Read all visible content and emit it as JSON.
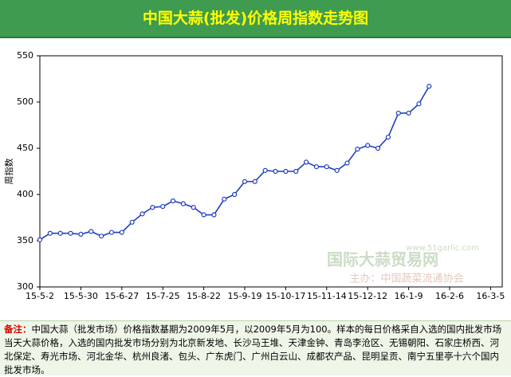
{
  "chart_data": {
    "type": "line",
    "title": "中国大蒜(批发)价格周指数走势图",
    "y_label": "周指数",
    "categories": [
      "15-5-2",
      null,
      null,
      null,
      "15-5-30",
      null,
      null,
      null,
      "15-6-27",
      null,
      null,
      null,
      "15-7-25",
      null,
      null,
      null,
      "15-8-22",
      null,
      null,
      null,
      "15-9-19",
      null,
      null,
      null,
      "15-10-17",
      null,
      null,
      null,
      "15-11-14",
      null,
      null,
      null,
      "15-12-12",
      null,
      null,
      null,
      "16-1-9",
      null,
      null,
      null,
      "16-2-6",
      null,
      null,
      null,
      "16-3-5"
    ],
    "values": [
      351,
      358,
      358,
      358,
      357,
      360,
      355,
      359,
      359,
      370,
      379,
      386,
      387,
      393,
      390,
      386,
      378,
      378,
      395,
      400,
      414,
      414,
      426,
      425,
      425,
      425,
      435,
      430,
      430,
      426,
      434,
      449,
      453,
      450,
      462,
      488,
      488,
      498,
      517,
      null,
      null,
      null,
      null,
      null,
      null
    ],
    "color": "#1f3fbf",
    "ylim": [
      300,
      550
    ],
    "yticks": [
      300,
      350,
      400,
      450,
      500,
      550
    ],
    "grid": false,
    "watermark": {
      "name": "国际大蒜贸易网",
      "url": "www.51garlic.com",
      "sponsor": "主办：中国蔬菜流通协会"
    },
    "note_label": "备注：",
    "note": "中国大蒜（批发市场）价格指数基期为2009年5月，以2009年5月为100。样本的每日价格采自入选的国内批发市场当天大蒜价格，入选的国内批发市场分别为北京新发地、长沙马王堆、天津金钟、青岛李沧区、无锡朝阳、石家庄桥西、河北保定、寿光市场、河北金华、杭州良渚、包头、广东虎门、广州白云山、成都农产品、昆明呈贡、南宁五里亭十六个国内批发市场。"
  }
}
